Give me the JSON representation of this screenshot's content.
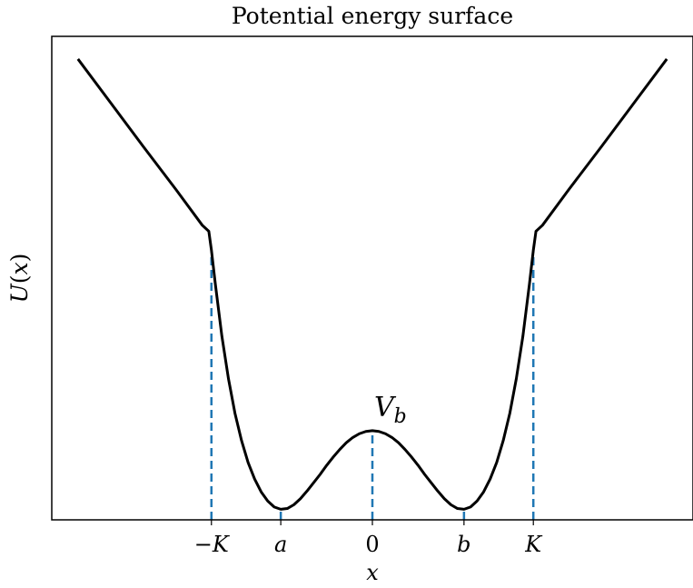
{
  "chart_data": {
    "type": "line",
    "title": "Potential energy surface",
    "xlabel": "x",
    "ylabel": "U(x)",
    "ylabel_parts": {
      "main": "U",
      "open": "(",
      "var": "x",
      "close": ")"
    },
    "grid": false,
    "legend": "none",
    "xlim": [
      -2.45,
      2.45
    ],
    "ylim": [
      -0.1,
      6.3
    ],
    "x_ticks": [
      {
        "value": -1.23,
        "label": "−K",
        "italic": true
      },
      {
        "value": -0.7,
        "label": "a",
        "italic": true
      },
      {
        "value": 0,
        "label": "0",
        "italic": false
      },
      {
        "value": 0.7,
        "label": "b",
        "italic": true
      },
      {
        "value": 1.23,
        "label": "K",
        "italic": true
      }
    ],
    "series": [
      {
        "line_color": "#000000",
        "x": [
          -2.25,
          -2.0,
          -1.75,
          -1.5,
          -1.3,
          -1.25,
          -1.23,
          -1.2,
          -1.15,
          -1.1,
          -1.05,
          -1.0,
          -0.95,
          -0.9,
          -0.85,
          -0.8,
          -0.75,
          -0.7,
          -0.65,
          -0.6,
          -0.55,
          -0.5,
          -0.45,
          -0.4,
          -0.35,
          -0.3,
          -0.25,
          -0.2,
          -0.15,
          -0.1,
          -0.05,
          0,
          0.05,
          0.1,
          0.15,
          0.2,
          0.25,
          0.3,
          0.35,
          0.4,
          0.45,
          0.5,
          0.55,
          0.6,
          0.65,
          0.7,
          0.75,
          0.8,
          0.85,
          0.9,
          0.95,
          1.0,
          1.05,
          1.1,
          1.15,
          1.2,
          1.23,
          1.25,
          1.3,
          1.5,
          1.75,
          2.0,
          2.25
        ],
        "y": [
          6.0,
          5.42,
          4.84,
          4.27,
          3.8,
          3.72,
          3.47,
          3.02,
          2.33,
          1.77,
          1.31,
          0.95,
          0.66,
          0.44,
          0.27,
          0.15,
          0.07,
          0.04,
          0.05,
          0.1,
          0.18,
          0.28,
          0.39,
          0.5,
          0.62,
          0.73,
          0.83,
          0.92,
          0.99,
          1.04,
          1.07,
          1.08,
          1.07,
          1.04,
          0.99,
          0.92,
          0.83,
          0.73,
          0.62,
          0.5,
          0.39,
          0.28,
          0.18,
          0.1,
          0.05,
          0.04,
          0.07,
          0.15,
          0.27,
          0.44,
          0.66,
          0.95,
          1.31,
          1.77,
          2.33,
          3.02,
          3.47,
          3.72,
          3.8,
          4.27,
          4.84,
          5.42,
          6.0
        ]
      }
    ],
    "reference_lines": [
      {
        "x": -1.23,
        "y_from": -0.1,
        "y_to": 3.47,
        "color": "#1f77b4",
        "style": "dashed"
      },
      {
        "x": -0.7,
        "y_from": -0.1,
        "y_to": 0.04,
        "color": "#1f77b4",
        "style": "dashed"
      },
      {
        "x": 0,
        "y_from": -0.1,
        "y_to": 1.08,
        "color": "#1f77b4",
        "style": "dashed"
      },
      {
        "x": 0.7,
        "y_from": -0.1,
        "y_to": 0.04,
        "color": "#1f77b4",
        "style": "dashed"
      },
      {
        "x": 1.23,
        "y_from": -0.1,
        "y_to": 3.47,
        "color": "#1f77b4",
        "style": "dashed"
      }
    ],
    "annotations": [
      {
        "main": "V",
        "sub": "b",
        "x": 0,
        "y": 1.08
      }
    ]
  }
}
